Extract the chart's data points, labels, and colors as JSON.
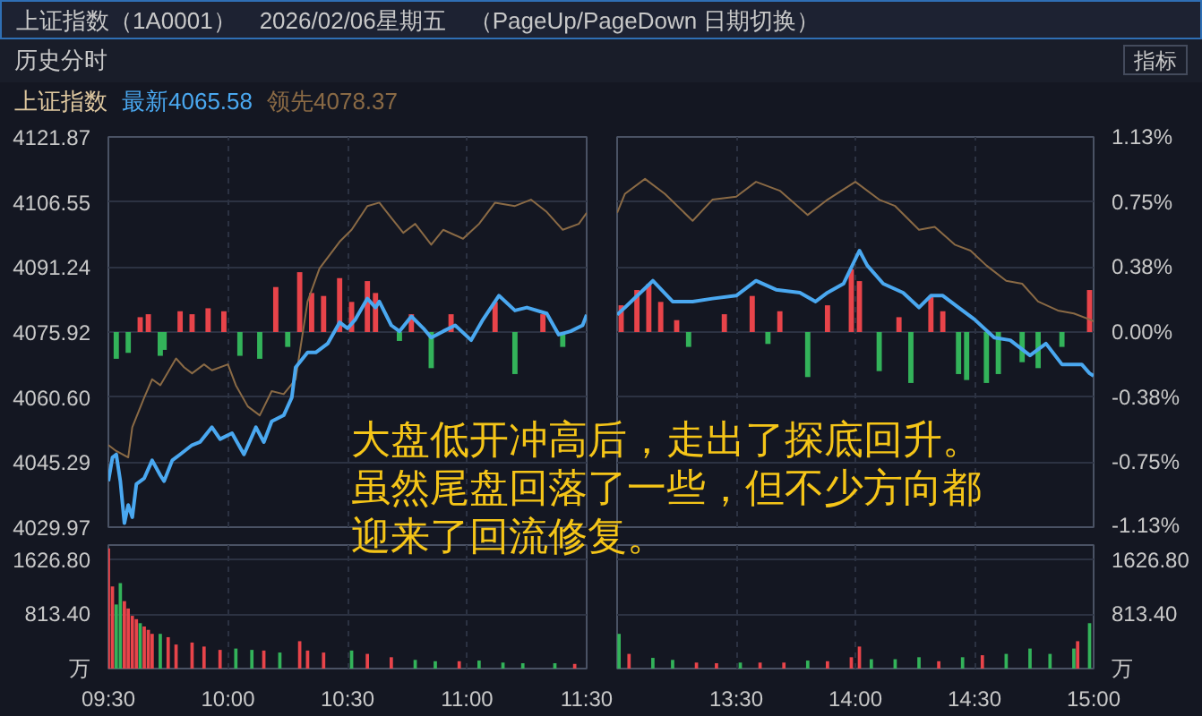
{
  "chart_data": [
    {
      "type": "line",
      "title": "上证指数（1A0001）　2026/02/06星期五　（PageUp/PageDown 日期切换）",
      "subtitle": "历史分时",
      "annotations": [
        "上证指数",
        "指标",
        "大盘低开冲高后，走出了探底回升。虽然尾盘回落了一些，但不少方向都迎来了回流修复。"
      ],
      "xlim": [
        9.5,
        11.5
      ],
      "xticks": [
        9.5,
        10,
        10.5,
        11,
        11.5
      ],
      "ylim": [
        4029.97,
        4121.87
      ],
      "yticks": [
        4029.97,
        4045.29,
        {
          "value": 4060.6,
          "label": "4060.60"
        },
        4075.92,
        4091.24,
        4106.55,
        4121.87
      ],
      "tick_labels": "y",
      "grid": true,
      "legend": "top left",
      "series": [
        {
          "type": "bar",
          "x": [
            9.533,
            9.583,
            9.633,
            9.667,
            9.717,
            9.733,
            9.8,
            9.85,
            9.917,
            9.983,
            10.05,
            10.133,
            10.2,
            10.25,
            10.3,
            10.35,
            10.4,
            10.467,
            10.517,
            10.583,
            10.617,
            10.717,
            10.767,
            10.85,
            10.933,
            11.117,
            11.2,
            11.317,
            11.4
          ],
          "values": [
            -6.3,
            -4.9,
            3.5,
            4.2,
            -5.6,
            -4.2,
            4.9,
            4.2,
            5.6,
            4.9,
            -5.6,
            -6.3,
            10.6,
            -3.5,
            14.1,
            9.2,
            8.5,
            12.7,
            7.1,
            12.0,
            9.2,
            -2.1,
            4.2,
            -8.5,
            4.2,
            7.1,
            -9.9,
            4.2,
            -3.5
          ],
          "base": [
            4075.92,
            4075.92,
            4075.92,
            4075.92,
            4075.92,
            4075.92,
            4075.92,
            4075.92,
            4075.92,
            4075.92,
            4075.92,
            4075.92,
            4075.92,
            4075.92,
            4075.92,
            4075.92,
            4075.92,
            4075.92,
            4075.92,
            4075.92,
            4075.92,
            4075.92,
            4075.92,
            4075.92,
            4075.92,
            4075.92,
            4075.92,
            4075.92,
            4075.92
          ],
          "colors": [
            "#33b35a",
            "#33b35a",
            "#e8444a",
            "#e8444a",
            "#33b35a",
            "#33b35a",
            "#e8444a",
            "#e8444a",
            "#e8444a",
            "#e8444a",
            "#33b35a",
            "#33b35a",
            "#e8444a",
            "#33b35a",
            "#e8444a",
            "#e8444a",
            "#e8444a",
            "#e8444a",
            "#e8444a",
            "#e8444a",
            "#e8444a",
            "#33b35a",
            "#e8444a",
            "#33b35a",
            "#e8444a",
            "#e8444a",
            "#33b35a",
            "#e8444a",
            "#33b35a"
          ]
        },
        {
          "type": "line",
          "name": "领先4078.37",
          "color": "#8a6a45",
          "x": [
            9.5,
            9.533,
            9.583,
            9.6,
            9.65,
            9.683,
            9.717,
            9.783,
            9.817,
            9.85,
            9.9,
            9.933,
            10,
            10.033,
            10.083,
            10.133,
            10.183,
            10.233,
            10.283,
            10.333,
            10.383,
            10.467,
            10.517,
            10.583,
            10.633,
            10.683,
            10.733,
            10.783,
            10.85,
            10.9,
            10.983,
            11.05,
            11.117,
            11.2,
            11.267,
            11.333,
            11.4,
            11.467,
            11.5
          ],
          "values": [
            4049.3,
            4047.9,
            4046.4,
            4053.5,
            4060.5,
            4064.8,
            4063.4,
            4069.7,
            4067.6,
            4066.2,
            4068.3,
            4066.9,
            4068.3,
            4063.4,
            4058.4,
            4056.3,
            4062.0,
            4061.3,
            4064.8,
            4083.1,
            4090.9,
            4097.2,
            4100.0,
            4105.6,
            4106.4,
            4102.8,
            4099.3,
            4101.4,
            4096.5,
            4100.0,
            4097.9,
            4101.4,
            4106.4,
            4105.6,
            4107.1,
            4104.2,
            4100.0,
            4101.4,
            4104.0
          ]
        },
        {
          "type": "line",
          "name": "最新4065.58",
          "color": "#4aa8f0",
          "x": [
            9.5,
            9.517,
            9.533,
            9.55,
            9.567,
            9.583,
            9.6,
            9.617,
            9.65,
            9.683,
            9.717,
            9.733,
            9.767,
            9.8,
            9.85,
            9.883,
            9.933,
            9.967,
            10.017,
            10.067,
            10.117,
            10.15,
            10.183,
            10.233,
            10.267,
            10.283,
            10.333,
            10.367,
            10.417,
            10.467,
            10.5,
            10.533,
            10.583,
            10.617,
            10.633,
            10.683,
            10.717,
            10.767,
            10.817,
            10.85,
            10.9,
            10.95,
            11.017,
            11.067,
            11.133,
            11.2,
            11.25,
            11.333,
            11.383,
            11.433,
            11.483,
            11.5
          ],
          "values": [
            4040.8,
            4046.4,
            4047.1,
            4040.8,
            4030.9,
            4035.2,
            4032.3,
            4040.1,
            4041.5,
            4045.7,
            4042.2,
            4040.8,
            4045.7,
            4047.1,
            4049.3,
            4050.0,
            4053.5,
            4050.7,
            4052.1,
            4047.1,
            4053.5,
            4050.0,
            4054.9,
            4056.3,
            4060.5,
            4067.6,
            4071.1,
            4071.1,
            4073.2,
            4078.2,
            4076.8,
            4078.9,
            4083.8,
            4081.7,
            4083.1,
            4077.5,
            4076.1,
            4079.6,
            4076.8,
            4074.6,
            4076.1,
            4077.5,
            4074.0,
            4078.9,
            4084.5,
            4081.0,
            4081.7,
            4080.3,
            4075.3,
            4076.1,
            4077.5,
            4080.0
          ]
        }
      ]
    },
    {
      "type": "line",
      "xlim": [
        13,
        15
      ],
      "xticks": [
        13,
        13.5,
        14,
        14.5,
        15
      ],
      "ylim": [
        4029.97,
        4121.87
      ],
      "yticks": [
        4029.97,
        4045.29,
        4060.6,
        4075.92,
        4091.24,
        4106.55,
        4121.87
      ],
      "y2lim": [
        -1.13,
        1.13
      ],
      "y2ticks": [
        {
          "value": -1.13,
          "label": "-1.13%"
        },
        {
          "value": -0.75,
          "label": "-0.75%"
        },
        {
          "value": -0.38,
          "label": "-0.38%"
        },
        {
          "value": 0,
          "label": "0.00%"
        },
        {
          "value": 0.38,
          "label": "0.38%"
        },
        {
          "value": 0.75,
          "label": "0.75%"
        },
        {
          "value": 1.13,
          "label": "1.13%"
        }
      ],
      "tick_labels": false,
      "grid": true,
      "series": [
        {
          "type": "bar",
          "x": [
            13.017,
            13.083,
            13.133,
            13.183,
            13.25,
            13.3,
            13.45,
            13.567,
            13.633,
            13.683,
            13.8,
            13.883,
            13.983,
            14.017,
            14.1,
            14.183,
            14.233,
            14.317,
            14.367,
            14.433,
            14.467,
            14.55,
            14.6,
            14.7,
            14.767,
            14.867,
            14.983
          ],
          "values": [
            6.3,
            9.9,
            11.3,
            7.1,
            2.8,
            -3.5,
            4.2,
            8.5,
            -2.8,
            4.9,
            -10.6,
            6.3,
            14.8,
            12.0,
            -9.2,
            3.5,
            -12.0,
            8.5,
            4.9,
            -9.9,
            -11.3,
            -12.0,
            -9.9,
            -7.1,
            -8.5,
            -3.5,
            9.9
          ],
          "base": [
            4075.92,
            4075.92,
            4075.92,
            4075.92,
            4075.92,
            4075.92,
            4075.92,
            4075.92,
            4075.92,
            4075.92,
            4075.92,
            4075.92,
            4075.92,
            4075.92,
            4075.92,
            4075.92,
            4075.92,
            4075.92,
            4075.92,
            4075.92,
            4075.92,
            4075.92,
            4075.92,
            4075.92,
            4075.92,
            4075.92,
            4075.92
          ],
          "colors": [
            "#e8444a",
            "#e8444a",
            "#e8444a",
            "#e8444a",
            "#e8444a",
            "#33b35a",
            "#e8444a",
            "#e8444a",
            "#33b35a",
            "#e8444a",
            "#33b35a",
            "#e8444a",
            "#e8444a",
            "#e8444a",
            "#33b35a",
            "#e8444a",
            "#33b35a",
            "#e8444a",
            "#e8444a",
            "#33b35a",
            "#33b35a",
            "#33b35a",
            "#33b35a",
            "#33b35a",
            "#33b35a",
            "#33b35a",
            "#e8444a"
          ]
        },
        {
          "type": "line",
          "color": "#8a6a45",
          "x": [
            13,
            13.033,
            13.117,
            13.2,
            13.317,
            13.4,
            13.5,
            13.583,
            13.683,
            13.8,
            13.883,
            14,
            14.1,
            14.167,
            14.267,
            14.333,
            14.417,
            14.483,
            14.55,
            14.633,
            14.7,
            14.767,
            14.85,
            14.917,
            14.983,
            15
          ],
          "values": [
            4104.0,
            4108.5,
            4112.0,
            4108.5,
            4102.1,
            4107.1,
            4107.8,
            4111.3,
            4109.2,
            4103.5,
            4107.1,
            4111.3,
            4107.1,
            4105.6,
            4100.0,
            4100.7,
            4096.5,
            4095.1,
            4091.6,
            4088.0,
            4087.3,
            4083.1,
            4081.0,
            4080.3,
            4078.9,
            4078.4
          ]
        },
        {
          "type": "line",
          "color": "#4aa8f0",
          "x": [
            13,
            13.033,
            13.15,
            13.233,
            13.317,
            13.4,
            13.5,
            13.583,
            13.667,
            13.767,
            13.833,
            13.883,
            13.95,
            14.017,
            14.05,
            14.117,
            14.2,
            14.267,
            14.317,
            14.367,
            14.433,
            14.5,
            14.583,
            14.65,
            14.733,
            14.8,
            14.867,
            14.95,
            14.983,
            15
          ],
          "values": [
            4080.0,
            4081.7,
            4088.0,
            4083.1,
            4083.1,
            4083.8,
            4084.5,
            4088.0,
            4085.9,
            4085.2,
            4083.1,
            4085.2,
            4087.3,
            4095.1,
            4091.6,
            4087.3,
            4085.2,
            4081.7,
            4084.5,
            4084.5,
            4081.7,
            4078.9,
            4074.6,
            4074.0,
            4070.4,
            4073.2,
            4068.3,
            4068.3,
            4066.2,
            4065.6
          ]
        }
      ]
    },
    {
      "type": "bar",
      "x": [
        9.5,
        9.517,
        9.533,
        9.55,
        9.567,
        9.583,
        9.6,
        9.617,
        9.633,
        9.65,
        9.667,
        9.683,
        9.717,
        9.75,
        9.783,
        9.85,
        9.9,
        9.967,
        10.033,
        10.1,
        10.15,
        10.217,
        10.3,
        10.333,
        10.4,
        10.517,
        10.583,
        10.683,
        10.783,
        10.867,
        10.967,
        11.05,
        11.15,
        11.233,
        11.367,
        11.45
      ],
      "values": [
        1800,
        1230,
        960,
        1280,
        1010,
        900,
        790,
        740,
        680,
        630,
        580,
        520,
        520,
        470,
        360,
        390,
        330,
        280,
        300,
        280,
        270,
        240,
        410,
        270,
        240,
        270,
        220,
        170,
        130,
        110,
        110,
        120,
        90,
        80,
        80,
        70
      ],
      "colors": [
        "#e8444a",
        "#e8444a",
        "#33b35a",
        "#33b35a",
        "#e8444a",
        "#e8444a",
        "#e8444a",
        "#e8444a",
        "#33b35a",
        "#e8444a",
        "#e8444a",
        "#e8444a",
        "#33b35a",
        "#e8444a",
        "#e8444a",
        "#e8444a",
        "#e8444a",
        "#e8444a",
        "#33b35a",
        "#33b35a",
        "#e8444a",
        "#33b35a",
        "#e8444a",
        "#e8444a",
        "#e8444a",
        "#33b35a",
        "#e8444a",
        "#e8444a",
        "#33b35a",
        "#33b35a",
        "#e8444a",
        "#33b35a",
        "#33b35a",
        "#33b35a",
        "#33b35a",
        "#e8444a"
      ],
      "xlim": [
        9.5,
        11.5
      ],
      "xticks": [
        {
          "value": 9.5,
          "label": "09:30"
        },
        {
          "value": 10,
          "label": "10:00"
        },
        {
          "value": 10.5,
          "label": "10:30"
        },
        {
          "value": 11,
          "label": "11:00"
        },
        {
          "value": 11.5,
          "label": "11:30"
        }
      ],
      "ylim": [
        0,
        1850
      ],
      "yticks": [
        {
          "value": 0,
          "label": "万"
        },
        {
          "value": 813.4,
          "label": "813.40"
        },
        {
          "value": 1626.8,
          "label": "1626.80"
        }
      ],
      "grid": true
    },
    {
      "type": "bar",
      "series": [
        {
          "axis": "y2",
          "x": [
            13.008,
            13.05,
            13.15,
            13.233,
            13.333,
            13.417,
            13.517,
            13.6,
            13.7,
            13.8,
            13.883,
            13.983,
            14.017,
            14.067,
            14.167,
            14.267,
            14.35,
            14.45,
            14.533,
            14.633,
            14.733,
            14.817,
            14.917,
            14.933,
            14.983
          ],
          "values": [
            520,
            220,
            160,
            130,
            90,
            80,
            90,
            90,
            90,
            120,
            110,
            170,
            330,
            140,
            140,
            170,
            110,
            170,
            200,
            220,
            300,
            220,
            300,
            410,
            680
          ],
          "colors": [
            "#33b35a",
            "#e8444a",
            "#33b35a",
            "#33b35a",
            "#e8444a",
            "#e8444a",
            "#33b35a",
            "#e8444a",
            "#e8444a",
            "#33b35a",
            "#e8444a",
            "#e8444a",
            "#e8444a",
            "#33b35a",
            "#33b35a",
            "#33b35a",
            "#e8444a",
            "#33b35a",
            "#e8444a",
            "#33b35a",
            "#33b35a",
            "#33b35a",
            "#33b35a",
            "#e8444a",
            "#33b35a"
          ]
        }
      ],
      "xlim": [
        13,
        15
      ],
      "xticks": [
        {
          "value": 13.5,
          "label": "13:30"
        },
        {
          "value": 14,
          "label": "14:00"
        },
        {
          "value": 14.5,
          "label": "14:30"
        },
        {
          "value": 15,
          "label": "15:00"
        }
      ],
      "y2lim": [
        0,
        1850
      ],
      "y2ticks": [
        {
          "value": 0,
          "label": "万"
        },
        {
          "value": 813.4,
          "label": "813.40"
        },
        {
          "value": 1626.8,
          "label": "1626.80"
        }
      ],
      "grid": true
    }
  ]
}
